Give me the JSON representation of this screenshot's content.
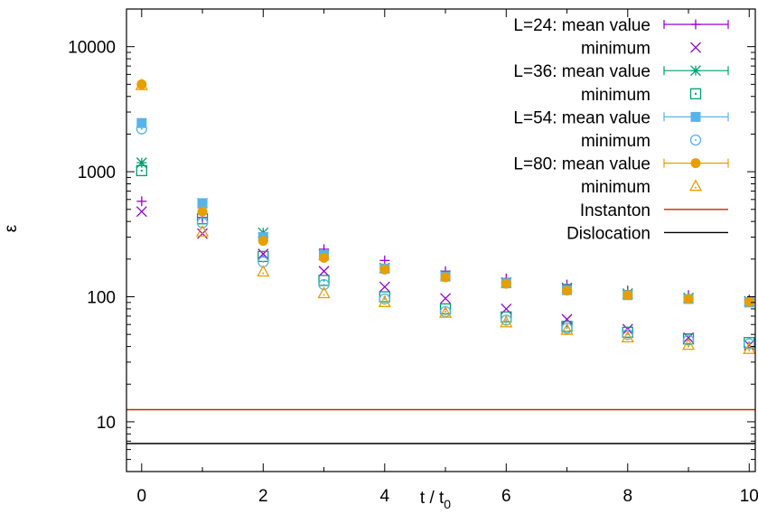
{
  "chart_data": {
    "type": "scatter",
    "title": "",
    "xlabel": "t / t",
    "xlabel_sub": "0",
    "ylabel": "ε",
    "xlim": [
      -0.25,
      10.1
    ],
    "ylim": [
      4,
      20000
    ],
    "yscale": "log",
    "grid": false,
    "legend_position": "top-right",
    "x_ticks": [
      0,
      2,
      4,
      6,
      8,
      10
    ],
    "x_tick_labels": [
      "0",
      "2",
      "4",
      "6",
      "8",
      "10"
    ],
    "y_ticks": [
      10,
      100,
      1000,
      10000
    ],
    "y_tick_labels": [
      "10",
      "100",
      "1000",
      "10000"
    ],
    "x": [
      0,
      1,
      2,
      3,
      4,
      5,
      6,
      7,
      8,
      9,
      10
    ],
    "series": [
      {
        "name": "L=24: mean value",
        "color": "#9400d3",
        "marker": "plus",
        "errorbar": true,
        "values": [
          580,
          430,
          300,
          240,
          195,
          160,
          140,
          125,
          112,
          103,
          95
        ]
      },
      {
        "name": "minimum",
        "color": "#9400d3",
        "marker": "cross",
        "values": [
          480,
          320,
          220,
          160,
          120,
          97,
          80,
          66,
          55,
          47,
          41
        ]
      },
      {
        "name": "L=36: mean value",
        "color": "#009e73",
        "marker": "star",
        "errorbar": true,
        "values": [
          1180,
          560,
          325,
          215,
          170,
          148,
          130,
          118,
          106,
          98,
          92
        ]
      },
      {
        "name": "minimum",
        "color": "#009e73",
        "marker": "open-square",
        "values": [
          1020,
          420,
          210,
          135,
          100,
          80,
          69,
          58,
          52,
          46,
          43
        ]
      },
      {
        "name": "L=54: mean value",
        "color": "#56b4e9",
        "marker": "filled-square",
        "errorbar": true,
        "values": [
          2450,
          560,
          300,
          215,
          168,
          145,
          128,
          113,
          103,
          96,
          90
        ]
      },
      {
        "name": "minimum",
        "color": "#56b4e9",
        "marker": "open-circle",
        "values": [
          2200,
          390,
          190,
          125,
          96,
          76,
          65,
          56,
          50,
          45,
          42
        ]
      },
      {
        "name": "L=80: mean value",
        "color": "#e69f00",
        "marker": "filled-circle",
        "errorbar": true,
        "values": [
          5000,
          480,
          280,
          205,
          165,
          143,
          127,
          112,
          103,
          96,
          91
        ]
      },
      {
        "name": "minimum",
        "color": "#e69f00",
        "marker": "open-triangle",
        "values": [
          4900,
          330,
          158,
          106,
          90,
          74,
          62,
          54,
          47,
          41,
          38
        ]
      }
    ],
    "reference_lines": [
      {
        "name": "Instanton",
        "color": "#cc2200",
        "y": 12.5
      },
      {
        "name": "Dislocation",
        "color": "#000000",
        "y": 6.7
      }
    ]
  }
}
